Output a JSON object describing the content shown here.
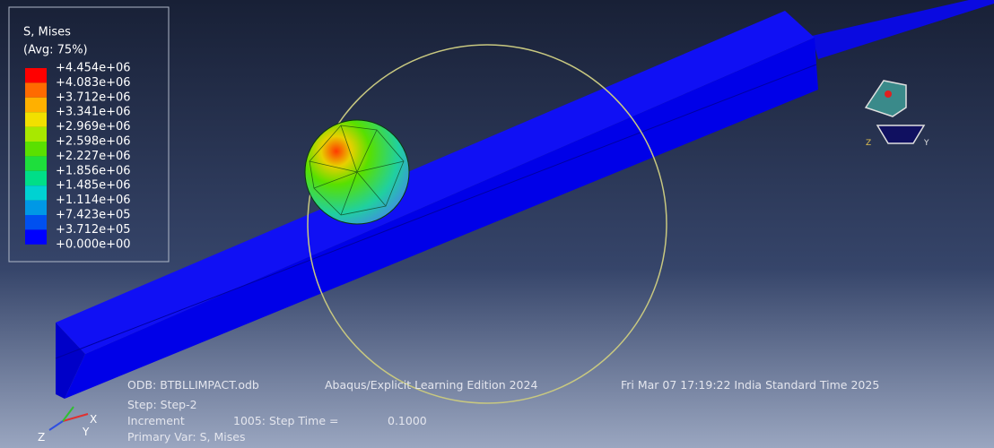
{
  "legend": {
    "title": "S, Mises",
    "subtitle": "(Avg: 75%)",
    "labels": [
      "+4.454e+06",
      "+4.083e+06",
      "+3.712e+06",
      "+3.341e+06",
      "+2.969e+06",
      "+2.598e+06",
      "+2.227e+06",
      "+1.856e+06",
      "+1.485e+06",
      "+1.114e+06",
      "+7.423e+05",
      "+3.712e+05",
      "+0.000e+00"
    ],
    "colors": [
      "#ff0000",
      "#ff6a00",
      "#ffb000",
      "#f2e000",
      "#a8e800",
      "#5ae000",
      "#1ede3c",
      "#00de88",
      "#00d2d2",
      "#0098e6",
      "#0050f0",
      "#0000ff"
    ]
  },
  "info": {
    "odb": "ODB: BTBLLIMPACT.odb",
    "edition": "Abaqus/Explicit Learning Edition 2024",
    "date": "Fri Mar 07 17:19:22 India Standard Time 2025",
    "step": "Step: Step-2",
    "increment_label": "Increment",
    "increment": "1005: Step Time =",
    "step_time": "0.1000",
    "primary_var": "Primary Var: S, Mises"
  },
  "triad": {
    "x": "X",
    "y": "Y",
    "z": "Z"
  },
  "view_triad": {
    "y": "Y",
    "z": "Z"
  }
}
